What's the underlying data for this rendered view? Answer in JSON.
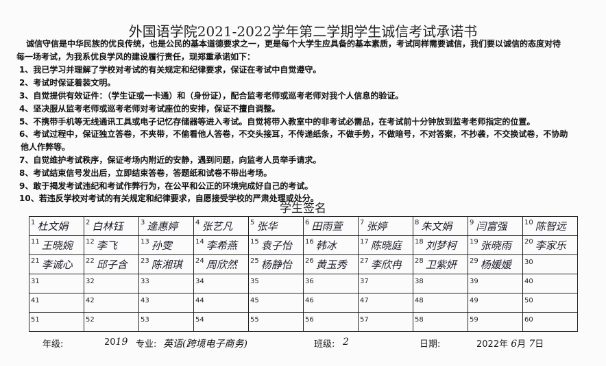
{
  "title": "外国语学院2021-2022学年第二学期学生诚信考试承诺书",
  "intro": [
    "诚信守信是中华民族的优良传统，也是公民的基本道德要求之一，更是每个大学生应具备的基本素质，考试同样需要诚信，我们要以诚信的态度对待",
    "每一场考试，为我系优良学风的建设履行责任，现郑重承诺如下："
  ],
  "pledges": [
    "1、我已学习并理解了学校对考试的有关规定和纪律要求，保证在考试中自觉遵守。",
    "2、考试时保证着装文明。",
    "3、自觉提供有效证件：（学生证或一卡通）和（身份证），配合监考老师或巡考老师对我个人信息的验证。",
    "4、坚决服从监考老师或巡考老师对考试座位的安排，保证不擅自调整。",
    "5、不携带手机等无线通讯工具或电子记忆存储器等进入考试。自觉将带入教室中的非考试必需品，在考试前十分钟放到监考老师指定的位置。",
    "6、考试过程中，保证独立答卷，不夹带，不偷看他人答卷，不交头接耳，不传递纸条，不做手势，不做暗号，不对答案，不抄袭，不交换试卷，不协助",
    "他人作弊等。",
    "7、自觉维护考试秩序，保证考场内附近的安静，遇到问题，向监考人员举手请求。",
    "8、考试结束信号发出后，立即结束答卷，答题纸和试卷不带出考场。",
    "9、敢于揭发考试违纪和考试作弊行为，在公平和公正的环境完成好自己的考试。",
    "10、若违反学校对考试的有关规定和纪律要求，自愿接受学校的严肃处理或处分。"
  ],
  "signature_title": "学生签名",
  "signatures": [
    {
      "num": "1",
      "name": "杜文娟"
    },
    {
      "num": "2",
      "name": "白林钰"
    },
    {
      "num": "3",
      "name": "逄惠婷"
    },
    {
      "num": "4",
      "name": "张艺凡"
    },
    {
      "num": "5",
      "name": "张华"
    },
    {
      "num": "6",
      "name": "田雨萱"
    },
    {
      "num": "7",
      "name": "张婷"
    },
    {
      "num": "8",
      "name": "朱文娟"
    },
    {
      "num": "9",
      "name": "闫富强"
    },
    {
      "num": "10",
      "name": "陈智远"
    },
    {
      "num": "11",
      "name": "王晓婉"
    },
    {
      "num": "12",
      "name": "李飞"
    },
    {
      "num": "13",
      "name": "孙雯"
    },
    {
      "num": "14",
      "name": "李希燕"
    },
    {
      "num": "15",
      "name": "袁子怡"
    },
    {
      "num": "16",
      "name": "韩冰"
    },
    {
      "num": "17",
      "name": "陈晓庭"
    },
    {
      "num": "18",
      "name": "刘梦柯"
    },
    {
      "num": "19",
      "name": "张晓雨"
    },
    {
      "num": "20",
      "name": "李家乐"
    },
    {
      "num": "21",
      "name": "李诚心"
    },
    {
      "num": "22",
      "name": "邱子含"
    },
    {
      "num": "23",
      "name": "陈湘琪"
    },
    {
      "num": "24",
      "name": "周欣然"
    },
    {
      "num": "25",
      "name": "杨静怡"
    },
    {
      "num": "26",
      "name": "黄玉秀"
    },
    {
      "num": "27",
      "name": "李欣冉"
    },
    {
      "num": "28",
      "name": "卫紫妍"
    },
    {
      "num": "29",
      "name": "杨媛媛"
    },
    {
      "num": "30",
      "name": ""
    },
    {
      "num": "31",
      "name": ""
    },
    {
      "num": "32",
      "name": ""
    },
    {
      "num": "33",
      "name": ""
    },
    {
      "num": "34",
      "name": ""
    },
    {
      "num": "35",
      "name": ""
    },
    {
      "num": "36",
      "name": ""
    },
    {
      "num": "37",
      "name": ""
    },
    {
      "num": "38",
      "name": ""
    },
    {
      "num": "39",
      "name": ""
    },
    {
      "num": "40",
      "name": ""
    },
    {
      "num": "41",
      "name": ""
    },
    {
      "num": "42",
      "name": ""
    },
    {
      "num": "43",
      "name": ""
    },
    {
      "num": "44",
      "name": ""
    },
    {
      "num": "45",
      "name": ""
    },
    {
      "num": "46",
      "name": ""
    },
    {
      "num": "47",
      "name": ""
    },
    {
      "num": "48",
      "name": ""
    },
    {
      "num": "49",
      "name": ""
    },
    {
      "num": "50",
      "name": ""
    },
    {
      "num": "51",
      "name": ""
    },
    {
      "num": "52",
      "name": ""
    },
    {
      "num": "53",
      "name": ""
    },
    {
      "num": "54",
      "name": ""
    },
    {
      "num": "55",
      "name": ""
    },
    {
      "num": "56",
      "name": ""
    },
    {
      "num": "57",
      "name": ""
    },
    {
      "num": "58",
      "name": ""
    },
    {
      "num": "59",
      "name": ""
    },
    {
      "num": "60",
      "name": ""
    }
  ],
  "footer": {
    "grade_label": "年级:",
    "grade_prefix": "20",
    "grade_value": "19",
    "major_label": "专业:",
    "major_value": "英语(跨境电子商务)",
    "class_label": "班级:",
    "class_value": "2",
    "date_label": "日期:",
    "date_year": "2022年",
    "date_month": "6",
    "month_unit": "月",
    "date_day": "7",
    "day_unit": "日"
  }
}
